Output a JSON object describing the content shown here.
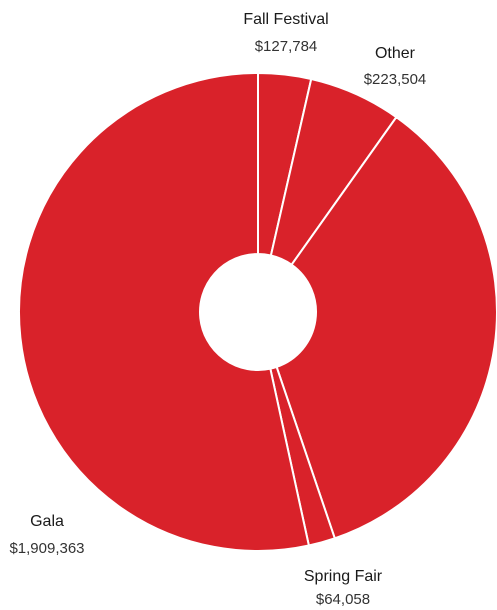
{
  "chart_data": {
    "type": "pie",
    "donut": true,
    "colors": {
      "slice": "#d9222a",
      "separator": "#ffffff"
    },
    "slices": [
      {
        "name": "Fall Festival",
        "value": 127784,
        "value_label": "$127,784"
      },
      {
        "name": "Other",
        "value": 223504,
        "value_label": "$223,504"
      },
      {
        "name": "Spring Fair",
        "value": 64058,
        "value_label": "$64,058"
      },
      {
        "name": "Gala",
        "value": 1909363,
        "value_label": "$1,909,363"
      }
    ],
    "extra_segments": [
      {
        "value": 1250000
      }
    ]
  }
}
